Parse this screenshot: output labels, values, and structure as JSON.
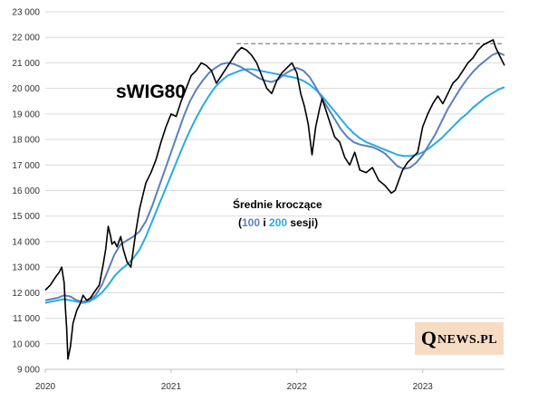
{
  "chart_data": {
    "type": "line",
    "title": "sWIG80",
    "annotation": {
      "line1": "Średnie kroczące",
      "open": "(",
      "ma100": "100",
      "and": " i ",
      "ma200": "200",
      "close": " sesji)"
    },
    "x_ticks": [
      "2020",
      "2021",
      "2022",
      "2023"
    ],
    "x_range": [
      2020.0,
      2023.65
    ],
    "y_ticks": [
      "9 000",
      "10 000",
      "11 000",
      "12 000",
      "13 000",
      "14 000",
      "15 000",
      "16 000",
      "17 000",
      "18 000",
      "19 000",
      "20 000",
      "21 000",
      "22 000",
      "23 000"
    ],
    "ylim": [
      9000,
      23000
    ],
    "grid": true,
    "reference_level": 21750,
    "reference_range": [
      2021.52,
      2023.65
    ],
    "colors": {
      "price": "#000000",
      "ma100": "#5b7fbf",
      "ma200": "#29abe2",
      "reference": "#808080",
      "ann_ma100": "#5b7fbf",
      "ann_ma200": "#29abe2"
    },
    "series": [
      {
        "key": "price",
        "x": [
          2020.0,
          2020.04,
          2020.08,
          2020.11,
          2020.13,
          2020.15,
          2020.16,
          2020.17,
          2020.18,
          2020.2,
          2020.22,
          2020.25,
          2020.28,
          2020.3,
          2020.33,
          2020.36,
          2020.4,
          2020.43,
          2020.46,
          2020.48,
          2020.5,
          2020.52,
          2020.53,
          2020.55,
          2020.57,
          2020.6,
          2020.62,
          2020.65,
          2020.68,
          2020.72,
          2020.75,
          2020.78,
          2020.8,
          2020.84,
          2020.88,
          2020.92,
          2020.96,
          2021.0,
          2021.04,
          2021.08,
          2021.12,
          2021.16,
          2021.2,
          2021.24,
          2021.28,
          2021.32,
          2021.36,
          2021.4,
          2021.44,
          2021.48,
          2021.52,
          2021.56,
          2021.6,
          2021.64,
          2021.68,
          2021.72,
          2021.76,
          2021.8,
          2021.84,
          2021.88,
          2021.92,
          2021.96,
          2022.0,
          2022.03,
          2022.06,
          2022.09,
          2022.12,
          2022.15,
          2022.18,
          2022.2,
          2022.22,
          2022.26,
          2022.3,
          2022.34,
          2022.38,
          2022.42,
          2022.46,
          2022.5,
          2022.55,
          2022.6,
          2022.65,
          2022.7,
          2022.75,
          2022.78,
          2022.81,
          2022.84,
          2022.88,
          2022.92,
          2022.96,
          2023.0,
          2023.04,
          2023.08,
          2023.12,
          2023.16,
          2023.2,
          2023.24,
          2023.28,
          2023.32,
          2023.36,
          2023.4,
          2023.44,
          2023.48,
          2023.52,
          2023.56,
          2023.58,
          2023.61,
          2023.63,
          2023.65
        ],
        "y": [
          12100,
          12300,
          12600,
          12800,
          13000,
          12400,
          11400,
          10600,
          9400,
          9900,
          10800,
          11300,
          11600,
          11900,
          11700,
          11800,
          12100,
          12300,
          13100,
          13700,
          14600,
          14200,
          13900,
          14000,
          13800,
          14200,
          13700,
          13200,
          13000,
          14400,
          15300,
          15900,
          16300,
          16700,
          17200,
          17900,
          18500,
          19000,
          18900,
          19500,
          20000,
          20500,
          20700,
          21000,
          20900,
          20700,
          20200,
          20500,
          20800,
          21100,
          21400,
          21600,
          21500,
          21300,
          21000,
          20500,
          20000,
          19800,
          20300,
          20600,
          20800,
          21000,
          20600,
          19800,
          19300,
          18600,
          17400,
          18500,
          19200,
          19600,
          19300,
          18700,
          18100,
          17900,
          17300,
          17000,
          17500,
          16800,
          16700,
          16900,
          16400,
          16200,
          15900,
          16000,
          16400,
          16800,
          17100,
          17300,
          17500,
          18500,
          19000,
          19400,
          19700,
          19400,
          19800,
          20200,
          20400,
          20700,
          21000,
          21200,
          21500,
          21700,
          21800,
          21900,
          21600,
          21300,
          21100,
          20900
        ]
      },
      {
        "key": "ma100",
        "x": [
          2020.0,
          2020.05,
          2020.1,
          2020.15,
          2020.2,
          2020.25,
          2020.3,
          2020.35,
          2020.4,
          2020.45,
          2020.5,
          2020.55,
          2020.6,
          2020.65,
          2020.7,
          2020.75,
          2020.8,
          2020.85,
          2020.9,
          2020.95,
          2021.0,
          2021.05,
          2021.1,
          2021.15,
          2021.2,
          2021.25,
          2021.3,
          2021.35,
          2021.4,
          2021.45,
          2021.5,
          2021.55,
          2021.6,
          2021.65,
          2021.7,
          2021.75,
          2021.8,
          2021.85,
          2021.9,
          2021.95,
          2022.0,
          2022.05,
          2022.1,
          2022.15,
          2022.2,
          2022.25,
          2022.3,
          2022.35,
          2022.4,
          2022.45,
          2022.5,
          2022.55,
          2022.6,
          2022.65,
          2022.7,
          2022.75,
          2022.8,
          2022.85,
          2022.9,
          2022.95,
          2023.0,
          2023.05,
          2023.1,
          2023.15,
          2023.2,
          2023.25,
          2023.3,
          2023.35,
          2023.4,
          2023.45,
          2023.5,
          2023.55,
          2023.6,
          2023.65
        ],
        "y": [
          11700,
          11750,
          11800,
          11900,
          11850,
          11700,
          11650,
          11700,
          11900,
          12300,
          12900,
          13500,
          13900,
          14050,
          14200,
          14400,
          14800,
          15400,
          16100,
          16800,
          17500,
          18200,
          18900,
          19500,
          19950,
          20300,
          20600,
          20800,
          20950,
          21000,
          20950,
          20850,
          20700,
          20550,
          20400,
          20300,
          20250,
          20350,
          20550,
          20700,
          20800,
          20700,
          20450,
          20050,
          19600,
          19200,
          18800,
          18400,
          18100,
          17900,
          17800,
          17750,
          17700,
          17600,
          17450,
          17200,
          16950,
          16850,
          16900,
          17100,
          17400,
          17800,
          18200,
          18700,
          19200,
          19600,
          20000,
          20350,
          20650,
          20900,
          21100,
          21300,
          21400,
          21300
        ]
      },
      {
        "key": "ma200",
        "x": [
          2020.0,
          2020.05,
          2020.1,
          2020.15,
          2020.2,
          2020.25,
          2020.3,
          2020.35,
          2020.4,
          2020.45,
          2020.5,
          2020.55,
          2020.6,
          2020.65,
          2020.7,
          2020.75,
          2020.8,
          2020.85,
          2020.9,
          2020.95,
          2021.0,
          2021.05,
          2021.1,
          2021.15,
          2021.2,
          2021.25,
          2021.3,
          2021.35,
          2021.4,
          2021.45,
          2021.5,
          2021.55,
          2021.6,
          2021.65,
          2021.7,
          2021.75,
          2021.8,
          2021.85,
          2021.9,
          2021.95,
          2022.0,
          2022.05,
          2022.1,
          2022.15,
          2022.2,
          2022.25,
          2022.3,
          2022.35,
          2022.4,
          2022.45,
          2022.5,
          2022.55,
          2022.6,
          2022.65,
          2022.7,
          2022.75,
          2022.8,
          2022.85,
          2022.9,
          2022.95,
          2023.0,
          2023.05,
          2023.1,
          2023.15,
          2023.2,
          2023.25,
          2023.3,
          2023.35,
          2023.4,
          2023.45,
          2023.5,
          2023.55,
          2023.6,
          2023.65
        ],
        "y": [
          11600,
          11650,
          11700,
          11750,
          11700,
          11650,
          11600,
          11650,
          11800,
          12000,
          12300,
          12650,
          12900,
          13100,
          13350,
          13700,
          14200,
          14800,
          15400,
          16000,
          16600,
          17200,
          17800,
          18350,
          18850,
          19300,
          19700,
          20050,
          20300,
          20500,
          20600,
          20700,
          20750,
          20750,
          20700,
          20650,
          20600,
          20550,
          20500,
          20450,
          20400,
          20300,
          20150,
          19950,
          19700,
          19400,
          19100,
          18800,
          18500,
          18250,
          18050,
          17900,
          17800,
          17700,
          17600,
          17500,
          17400,
          17350,
          17350,
          17400,
          17500,
          17650,
          17850,
          18050,
          18300,
          18550,
          18800,
          19000,
          19250,
          19450,
          19650,
          19800,
          19950,
          20050
        ]
      }
    ]
  },
  "logo": {
    "q": "Q",
    "rest": "NEWS.PL"
  }
}
